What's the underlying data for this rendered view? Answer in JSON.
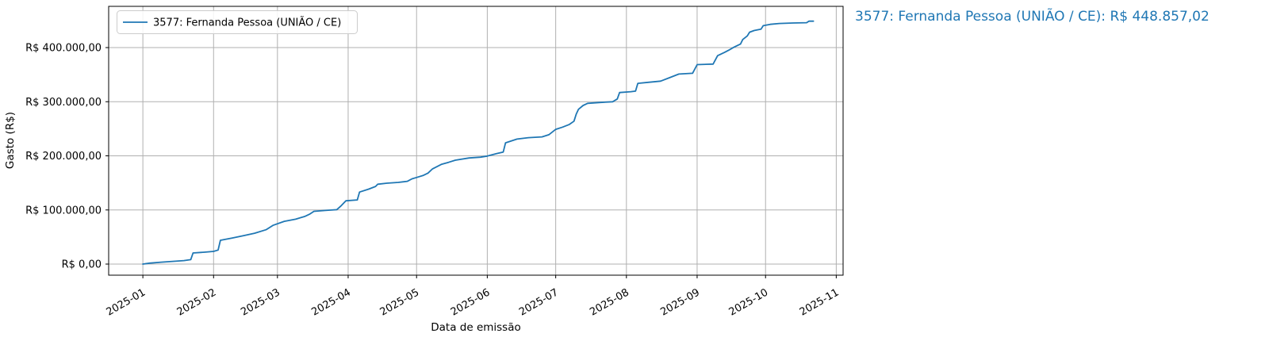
{
  "annotation": {
    "text": "3577: Fernanda Pessoa (UNIÃO / CE): R$ 448.857,02",
    "color": "#1f77b4"
  },
  "colors": {
    "line": "#1f77b4",
    "grid": "#b0b0b0",
    "spine": "#000000",
    "legend_border": "#cccccc",
    "background": "#ffffff"
  },
  "chart_data": {
    "type": "line",
    "title": "",
    "xlabel": "Data de emissão",
    "ylabel": "Gasto (R$)",
    "grid": true,
    "legend_position": "upper left",
    "legend": [
      {
        "label": "3577: Fernanda Pessoa (UNIÃO / CE)",
        "color": "#1f77b4"
      }
    ],
    "xlim": [
      "2024-12-17",
      "2025-11-04"
    ],
    "ylim": [
      -20500,
      476200
    ],
    "x_ticks": [
      {
        "date": "2025-01-01",
        "label": "2025-01"
      },
      {
        "date": "2025-02-01",
        "label": "2025-02"
      },
      {
        "date": "2025-03-01",
        "label": "2025-03"
      },
      {
        "date": "2025-04-01",
        "label": "2025-04"
      },
      {
        "date": "2025-05-01",
        "label": "2025-05"
      },
      {
        "date": "2025-06-01",
        "label": "2025-06"
      },
      {
        "date": "2025-07-01",
        "label": "2025-07"
      },
      {
        "date": "2025-08-01",
        "label": "2025-08"
      },
      {
        "date": "2025-09-01",
        "label": "2025-09"
      },
      {
        "date": "2025-10-01",
        "label": "2025-10"
      },
      {
        "date": "2025-11-01",
        "label": "2025-11"
      }
    ],
    "y_ticks": [
      {
        "value": 0,
        "label": "R$ 0,00"
      },
      {
        "value": 100000,
        "label": "R$ 100.000,00"
      },
      {
        "value": 200000,
        "label": "R$ 200.000,00"
      },
      {
        "value": 300000,
        "label": "R$ 300.000,00"
      },
      {
        "value": 400000,
        "label": "R$ 400.000,00"
      }
    ],
    "final_value": 448857.02,
    "final_value_label": "R$ 448.857,02",
    "series": [
      {
        "name": "3577: Fernanda Pessoa (UNIÃO / CE)",
        "color": "#1f77b4",
        "points": [
          [
            "2025-01-01",
            0
          ],
          [
            "2025-01-04",
            1800
          ],
          [
            "2025-01-09",
            3500
          ],
          [
            "2025-01-14",
            5000
          ],
          [
            "2025-01-19",
            6500
          ],
          [
            "2025-01-22",
            8200
          ],
          [
            "2025-01-23",
            20500
          ],
          [
            "2025-01-28",
            22000
          ],
          [
            "2025-02-01",
            23500
          ],
          [
            "2025-02-03",
            26000
          ],
          [
            "2025-02-04",
            44000
          ],
          [
            "2025-02-09",
            48000
          ],
          [
            "2025-02-14",
            52500
          ],
          [
            "2025-02-19",
            57000
          ],
          [
            "2025-02-24",
            63500
          ],
          [
            "2025-02-27",
            71500
          ],
          [
            "2025-03-04",
            79000
          ],
          [
            "2025-03-09",
            83000
          ],
          [
            "2025-03-13",
            88000
          ],
          [
            "2025-03-15",
            92000
          ],
          [
            "2025-03-17",
            97500
          ],
          [
            "2025-03-22",
            99000
          ],
          [
            "2025-03-27",
            100500
          ],
          [
            "2025-03-29",
            108000
          ],
          [
            "2025-03-31",
            117000
          ],
          [
            "2025-04-05",
            118500
          ],
          [
            "2025-04-06",
            133000
          ],
          [
            "2025-04-10",
            138500
          ],
          [
            "2025-04-13",
            143500
          ],
          [
            "2025-04-14",
            147500
          ],
          [
            "2025-04-18",
            149500
          ],
          [
            "2025-04-23",
            151000
          ],
          [
            "2025-04-27",
            153000
          ],
          [
            "2025-04-29",
            157500
          ],
          [
            "2025-05-01",
            160000
          ],
          [
            "2025-05-04",
            164000
          ],
          [
            "2025-05-06",
            168000
          ],
          [
            "2025-05-08",
            176000
          ],
          [
            "2025-05-12",
            184500
          ],
          [
            "2025-05-15",
            188000
          ],
          [
            "2025-05-18",
            192000
          ],
          [
            "2025-05-24",
            196000
          ],
          [
            "2025-05-29",
            197500
          ],
          [
            "2025-06-01",
            199500
          ],
          [
            "2025-06-05",
            204000
          ],
          [
            "2025-06-08",
            207000
          ],
          [
            "2025-06-09",
            224000
          ],
          [
            "2025-06-14",
            231000
          ],
          [
            "2025-06-19",
            233500
          ],
          [
            "2025-06-25",
            235000
          ],
          [
            "2025-06-28",
            239000
          ],
          [
            "2025-07-01",
            249000
          ],
          [
            "2025-07-04",
            253000
          ],
          [
            "2025-07-07",
            258000
          ],
          [
            "2025-07-09",
            264000
          ],
          [
            "2025-07-10",
            277000
          ],
          [
            "2025-07-11",
            286000
          ],
          [
            "2025-07-13",
            293000
          ],
          [
            "2025-07-15",
            297000
          ],
          [
            "2025-07-20",
            298500
          ],
          [
            "2025-07-26",
            300000
          ],
          [
            "2025-07-28",
            305000
          ],
          [
            "2025-07-29",
            317000
          ],
          [
            "2025-08-03",
            318500
          ],
          [
            "2025-08-05",
            319500
          ],
          [
            "2025-08-06",
            334000
          ],
          [
            "2025-08-11",
            336000
          ],
          [
            "2025-08-16",
            338000
          ],
          [
            "2025-08-20",
            344500
          ],
          [
            "2025-08-24",
            351000
          ],
          [
            "2025-08-30",
            352500
          ],
          [
            "2025-09-01",
            368500
          ],
          [
            "2025-09-08",
            369500
          ],
          [
            "2025-09-10",
            385000
          ],
          [
            "2025-09-13",
            391000
          ],
          [
            "2025-09-15",
            395500
          ],
          [
            "2025-09-17",
            400500
          ],
          [
            "2025-09-19",
            404500
          ],
          [
            "2025-09-20",
            406500
          ],
          [
            "2025-09-21",
            415000
          ],
          [
            "2025-09-23",
            421500
          ],
          [
            "2025-09-24",
            428500
          ],
          [
            "2025-09-26",
            431500
          ],
          [
            "2025-09-29",
            434000
          ],
          [
            "2025-09-30",
            440500
          ],
          [
            "2025-10-03",
            443000
          ],
          [
            "2025-10-07",
            444500
          ],
          [
            "2025-10-13",
            445500
          ],
          [
            "2025-10-19",
            446000
          ],
          [
            "2025-10-20",
            448857.02
          ],
          [
            "2025-10-22",
            448857.02
          ]
        ]
      }
    ]
  }
}
